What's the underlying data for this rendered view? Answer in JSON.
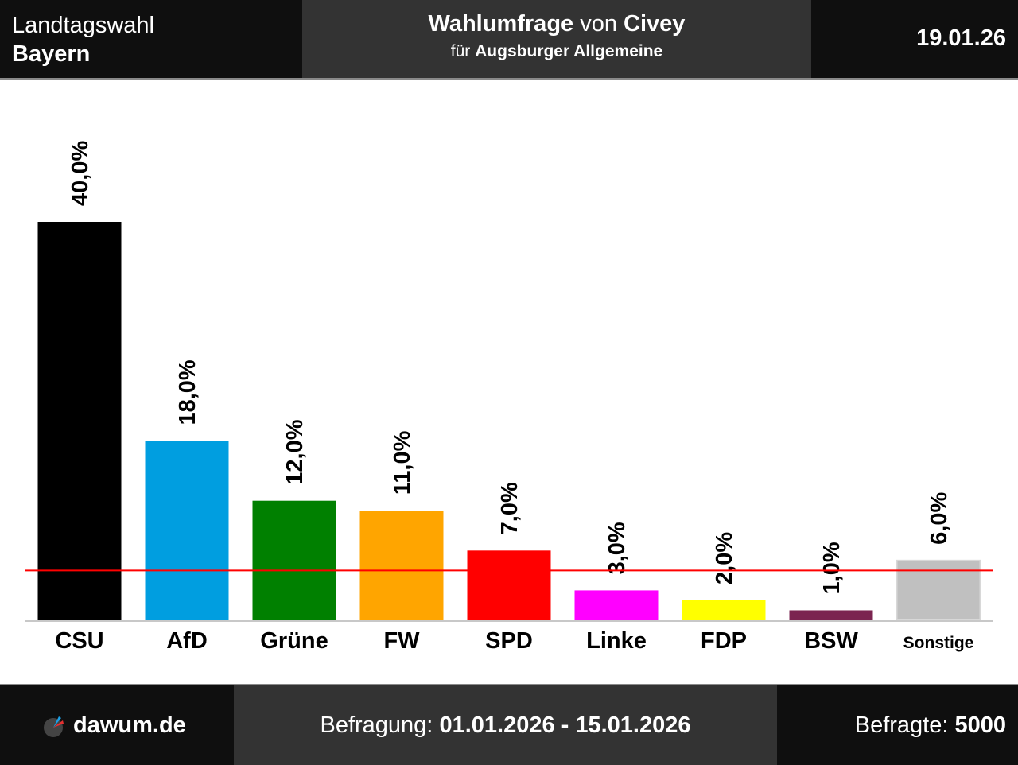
{
  "header": {
    "election": "Landtagswahl",
    "region": "Bayern",
    "title_prefix": "Wahlumfrage",
    "title_von": "von",
    "institute": "Civey",
    "client_prefix": "für",
    "client": "Augsburger Allgemeine",
    "date": "19.01.26"
  },
  "footer": {
    "logo_text": "dawum.de",
    "period_label": "Befragung:",
    "period": "01.01.2026 - 15.01.2026",
    "sample_label": "Befragte:",
    "sample": "5000"
  },
  "chart_data": {
    "type": "bar",
    "categories": [
      "CSU",
      "AfD",
      "Grüne",
      "FW",
      "SPD",
      "Linke",
      "FDP",
      "BSW",
      "Sonstige"
    ],
    "values": [
      40.0,
      18.0,
      12.0,
      11.0,
      7.0,
      3.0,
      2.0,
      1.0,
      6.0
    ],
    "labels": [
      "40,0%",
      "18,0%",
      "12,0%",
      "11,0%",
      "7,0%",
      "3,0%",
      "2,0%",
      "1,0%",
      "6,0%"
    ],
    "colors": [
      "#000000",
      "#009ee0",
      "#008000",
      "#ffa500",
      "#ff0000",
      "#ff00ff",
      "#ffff00",
      "#7b2450",
      "#c0c0c0"
    ],
    "threshold": 5,
    "threshold_color": "#ff0000",
    "ylim": [
      0,
      40
    ],
    "grid": false
  }
}
